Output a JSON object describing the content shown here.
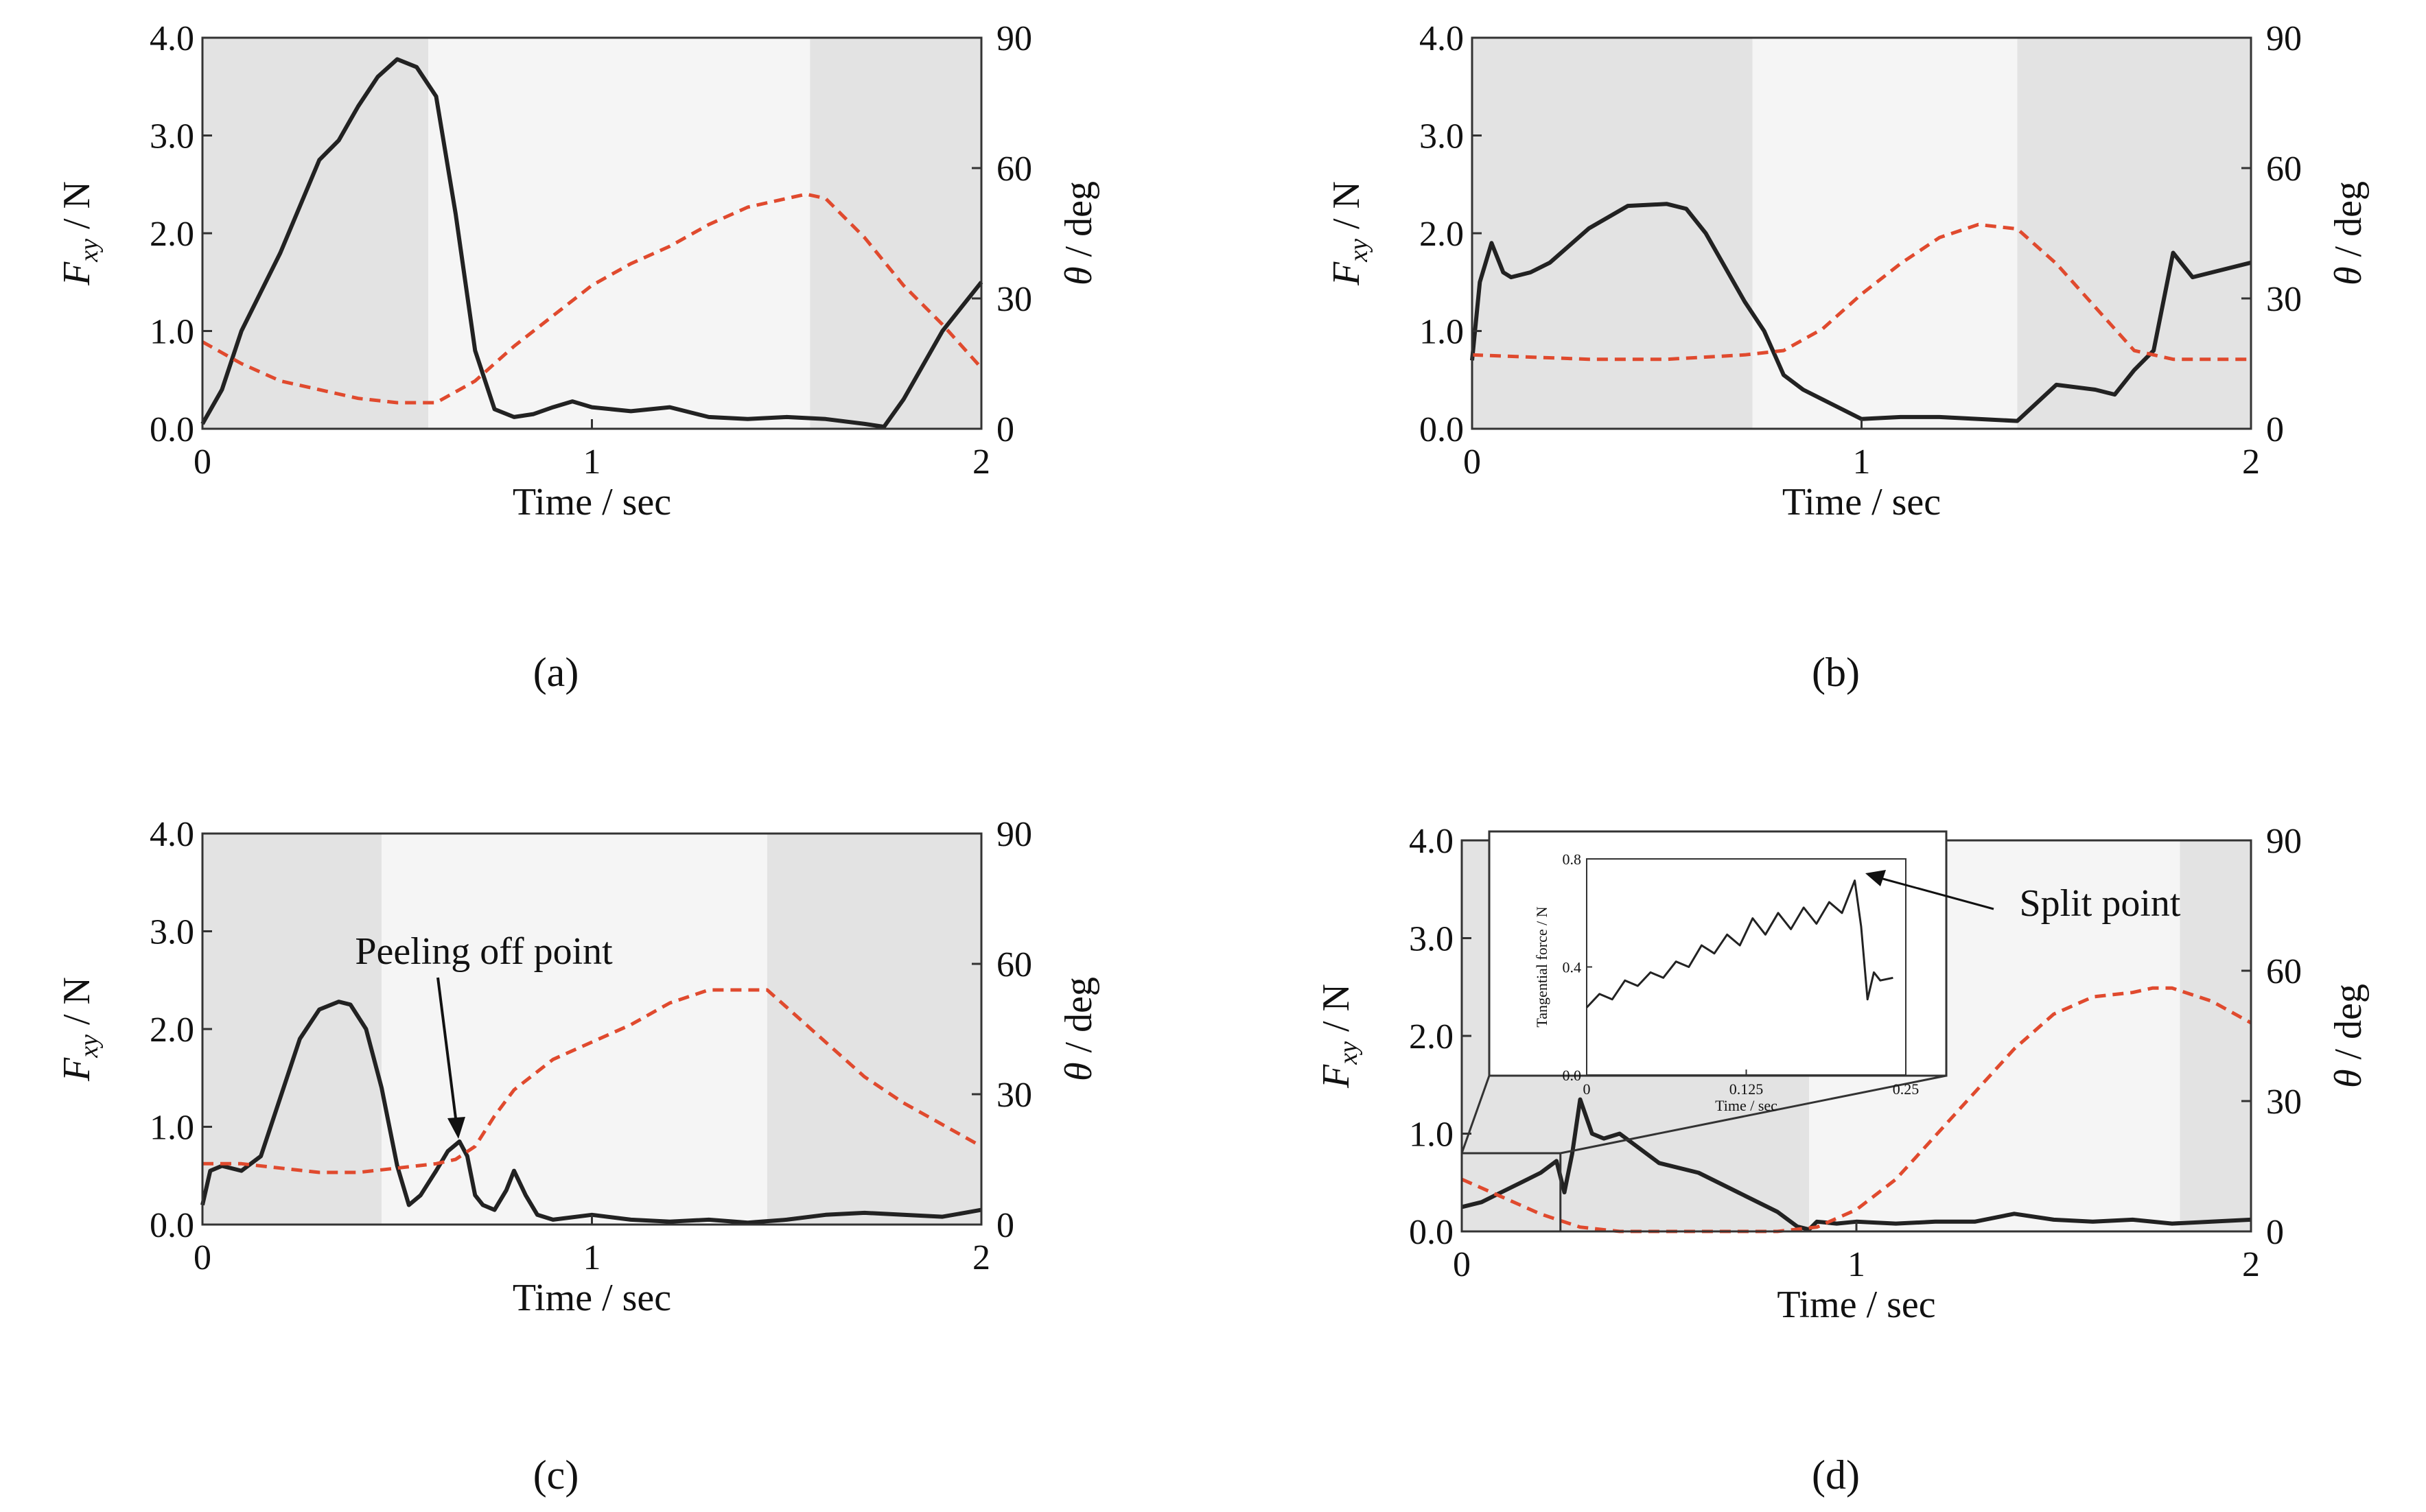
{
  "figure": {
    "panel_labels": [
      "(a)",
      "(b)",
      "(c)",
      "(d)"
    ]
  },
  "colors": {
    "force": "#222222",
    "angle": "#e04a2e",
    "shade_dark": "#e3e3e3",
    "shade_light": "#f5f5f5",
    "frame": "#333333"
  },
  "chart_data": [
    {
      "type": "line",
      "panel": "(a)",
      "xlabel": "Time / sec",
      "ylabel_main": "F",
      "ylabel_sub": "xy",
      "ylabel_rest": " / N",
      "y2label_main": "θ",
      "y2label_rest": " / deg",
      "xlim": [
        0,
        2
      ],
      "ylim": [
        0,
        4
      ],
      "y2lim": [
        0,
        90
      ],
      "xticks": [
        "0",
        "1",
        "2"
      ],
      "yticks": [
        "0.0",
        "1.0",
        "2.0",
        "3.0",
        "4.0"
      ],
      "y2ticks": [
        "0",
        "30",
        "60",
        "90"
      ],
      "shaded": [
        [
          0,
          0.58,
          "dark"
        ],
        [
          0.58,
          1.56,
          "light"
        ],
        [
          1.56,
          2,
          "dark"
        ]
      ],
      "series": [
        {
          "style": "solid",
          "x": [
            0,
            0.05,
            0.1,
            0.2,
            0.3,
            0.35,
            0.4,
            0.45,
            0.5,
            0.55,
            0.6,
            0.65,
            0.7,
            0.75,
            0.8,
            0.85,
            0.9,
            0.95,
            1.0,
            1.1,
            1.2,
            1.3,
            1.4,
            1.5,
            1.6,
            1.7,
            1.75,
            1.8,
            1.9,
            2.0
          ],
          "y": [
            0.05,
            0.4,
            1.0,
            1.8,
            2.75,
            2.95,
            3.3,
            3.6,
            3.78,
            3.7,
            3.4,
            2.2,
            0.8,
            0.2,
            0.12,
            0.15,
            0.22,
            0.28,
            0.22,
            0.18,
            0.22,
            0.12,
            0.1,
            0.12,
            0.1,
            0.05,
            0.02,
            0.3,
            1.0,
            1.5
          ]
        },
        {
          "style": "dashed",
          "x": [
            0,
            0.1,
            0.2,
            0.3,
            0.4,
            0.5,
            0.6,
            0.7,
            0.8,
            0.9,
            1.0,
            1.1,
            1.2,
            1.3,
            1.4,
            1.5,
            1.55,
            1.6,
            1.7,
            1.8,
            1.9,
            2.0
          ],
          "y": [
            20,
            15,
            11,
            9,
            7,
            6,
            6,
            11,
            19,
            26,
            33,
            38,
            42,
            47,
            51,
            53,
            54,
            53,
            44,
            33,
            24,
            14
          ]
        }
      ]
    },
    {
      "type": "line",
      "panel": "(b)",
      "xlabel": "Time / sec",
      "ylabel_main": "F",
      "ylabel_sub": "xy",
      "ylabel_rest": " / N",
      "y2label_main": "θ",
      "y2label_rest": " / deg",
      "xlim": [
        0,
        2
      ],
      "ylim": [
        0,
        4
      ],
      "y2lim": [
        0,
        90
      ],
      "xticks": [
        "0",
        "1",
        "2"
      ],
      "yticks": [
        "0.0",
        "1.0",
        "2.0",
        "3.0",
        "4.0"
      ],
      "y2ticks": [
        "0",
        "30",
        "60",
        "90"
      ],
      "shaded": [
        [
          0,
          0.72,
          "dark"
        ],
        [
          0.72,
          1.4,
          "light"
        ],
        [
          1.4,
          2,
          "dark"
        ]
      ],
      "series": [
        {
          "style": "solid",
          "x": [
            0,
            0.02,
            0.05,
            0.08,
            0.1,
            0.15,
            0.2,
            0.3,
            0.4,
            0.5,
            0.55,
            0.6,
            0.7,
            0.75,
            0.8,
            0.85,
            0.9,
            1.0,
            1.1,
            1.2,
            1.3,
            1.4,
            1.5,
            1.6,
            1.65,
            1.7,
            1.75,
            1.8,
            1.85,
            1.9,
            2.0
          ],
          "y": [
            0.7,
            1.5,
            1.9,
            1.6,
            1.55,
            1.6,
            1.7,
            2.05,
            2.28,
            2.3,
            2.25,
            2.0,
            1.3,
            1.0,
            0.55,
            0.4,
            0.3,
            0.1,
            0.12,
            0.12,
            0.1,
            0.08,
            0.45,
            0.4,
            0.35,
            0.6,
            0.8,
            1.8,
            1.55,
            1.6,
            1.7
          ]
        },
        {
          "style": "dashed",
          "x": [
            0,
            0.3,
            0.5,
            0.7,
            0.8,
            0.9,
            1.0,
            1.1,
            1.2,
            1.3,
            1.4,
            1.5,
            1.6,
            1.7,
            1.8,
            1.9,
            2.0
          ],
          "y": [
            17,
            16,
            16,
            17,
            18,
            23,
            31,
            38,
            44,
            47,
            46,
            38,
            28,
            18,
            16,
            16,
            16
          ]
        }
      ]
    },
    {
      "type": "line",
      "panel": "(c)",
      "xlabel": "Time / sec",
      "ylabel_main": "F",
      "ylabel_sub": "xy",
      "ylabel_rest": " / N",
      "y2label_main": "θ",
      "y2label_rest": " / deg",
      "xlim": [
        0,
        2
      ],
      "ylim": [
        0,
        4
      ],
      "y2lim": [
        0,
        90
      ],
      "xticks": [
        "0",
        "1",
        "2"
      ],
      "yticks": [
        "0.0",
        "1.0",
        "2.0",
        "3.0",
        "4.0"
      ],
      "y2ticks": [
        "0",
        "30",
        "60",
        "90"
      ],
      "annotation": "Peeling off point",
      "shaded": [
        [
          0,
          0.46,
          "dark"
        ],
        [
          0.46,
          1.45,
          "light"
        ],
        [
          1.45,
          2,
          "dark"
        ]
      ],
      "series": [
        {
          "style": "solid",
          "x": [
            0,
            0.02,
            0.05,
            0.1,
            0.15,
            0.2,
            0.25,
            0.3,
            0.35,
            0.38,
            0.42,
            0.46,
            0.5,
            0.53,
            0.56,
            0.6,
            0.63,
            0.66,
            0.68,
            0.69,
            0.7,
            0.72,
            0.75,
            0.78,
            0.8,
            0.83,
            0.86,
            0.9,
            1.0,
            1.1,
            1.2,
            1.3,
            1.4,
            1.5,
            1.6,
            1.7,
            1.8,
            1.9,
            2.0
          ],
          "y": [
            0.2,
            0.55,
            0.6,
            0.55,
            0.7,
            1.3,
            1.9,
            2.2,
            2.28,
            2.25,
            2.0,
            1.4,
            0.6,
            0.2,
            0.3,
            0.55,
            0.75,
            0.85,
            0.7,
            0.5,
            0.3,
            0.2,
            0.15,
            0.35,
            0.55,
            0.3,
            0.1,
            0.05,
            0.1,
            0.05,
            0.03,
            0.05,
            0.02,
            0.05,
            0.1,
            0.12,
            0.1,
            0.08,
            0.15
          ]
        },
        {
          "style": "dashed",
          "x": [
            0,
            0.1,
            0.2,
            0.3,
            0.4,
            0.5,
            0.6,
            0.65,
            0.7,
            0.75,
            0.8,
            0.9,
            1.0,
            1.1,
            1.2,
            1.3,
            1.4,
            1.45,
            1.5,
            1.6,
            1.7,
            1.8,
            1.9,
            2.0
          ],
          "y": [
            14,
            14,
            13,
            12,
            12,
            13,
            14,
            15,
            18,
            25,
            31,
            38,
            42,
            46,
            51,
            54,
            54,
            54,
            50,
            42,
            34,
            28,
            23,
            18
          ]
        }
      ]
    },
    {
      "type": "line",
      "panel": "(d)",
      "xlabel": "Time / sec",
      "ylabel_main": "F",
      "ylabel_sub": "xy",
      "ylabel_rest": " / N",
      "y2label_main": "θ",
      "y2label_rest": " / deg",
      "xlim": [
        0,
        2
      ],
      "ylim": [
        0,
        4
      ],
      "y2lim": [
        0,
        90
      ],
      "xticks": [
        "0",
        "1",
        "2"
      ],
      "yticks": [
        "0.0",
        "1.0",
        "2.0",
        "3.0",
        "4.0"
      ],
      "y2ticks": [
        "0",
        "30",
        "60",
        "90"
      ],
      "annotation": "Split point",
      "shaded": [
        [
          0,
          0.88,
          "dark"
        ],
        [
          0.88,
          1.82,
          "light"
        ],
        [
          1.82,
          2,
          "dark"
        ]
      ],
      "series": [
        {
          "style": "solid",
          "x": [
            0,
            0.05,
            0.1,
            0.15,
            0.2,
            0.24,
            0.26,
            0.28,
            0.3,
            0.33,
            0.36,
            0.4,
            0.45,
            0.5,
            0.6,
            0.7,
            0.8,
            0.85,
            0.88,
            0.9,
            0.95,
            1.0,
            1.1,
            1.2,
            1.3,
            1.4,
            1.5,
            1.6,
            1.7,
            1.8,
            1.9,
            2.0
          ],
          "y": [
            0.25,
            0.3,
            0.4,
            0.5,
            0.6,
            0.72,
            0.4,
            0.8,
            1.35,
            1.0,
            0.95,
            1.0,
            0.85,
            0.7,
            0.6,
            0.4,
            0.2,
            0.05,
            0.02,
            0.1,
            0.08,
            0.1,
            0.08,
            0.1,
            0.1,
            0.18,
            0.12,
            0.1,
            0.12,
            0.08,
            0.1,
            0.12
          ]
        },
        {
          "style": "dashed",
          "x": [
            0,
            0.1,
            0.2,
            0.3,
            0.4,
            0.5,
            0.6,
            0.7,
            0.8,
            0.9,
            1.0,
            1.1,
            1.2,
            1.3,
            1.4,
            1.5,
            1.6,
            1.7,
            1.75,
            1.8,
            1.9,
            2.0
          ],
          "y": [
            12,
            8,
            4,
            1,
            0,
            0,
            0,
            0,
            0,
            1,
            5,
            12,
            22,
            32,
            42,
            50,
            54,
            55,
            56,
            56,
            53,
            48
          ]
        }
      ],
      "inset": {
        "xlabel": "Time / sec",
        "ylabel": "Tangential force / N",
        "xlim": [
          0,
          0.25
        ],
        "ylim": [
          0,
          0.8
        ],
        "xticks": [
          "0",
          "0.125",
          "0.25"
        ],
        "yticks": [
          "0.0",
          "0.4",
          "0.8"
        ],
        "series": [
          {
            "style": "solid",
            "x": [
              0,
              0.01,
              0.02,
              0.03,
              0.04,
              0.05,
              0.06,
              0.07,
              0.08,
              0.09,
              0.1,
              0.11,
              0.12,
              0.13,
              0.14,
              0.15,
              0.16,
              0.17,
              0.18,
              0.19,
              0.2,
              0.21,
              0.215,
              0.22,
              0.225,
              0.23,
              0.24
            ],
            "y": [
              0.25,
              0.3,
              0.28,
              0.35,
              0.33,
              0.38,
              0.36,
              0.42,
              0.4,
              0.48,
              0.45,
              0.52,
              0.48,
              0.58,
              0.52,
              0.6,
              0.54,
              0.62,
              0.56,
              0.64,
              0.6,
              0.72,
              0.55,
              0.28,
              0.38,
              0.35,
              0.36
            ]
          }
        ]
      }
    }
  ]
}
